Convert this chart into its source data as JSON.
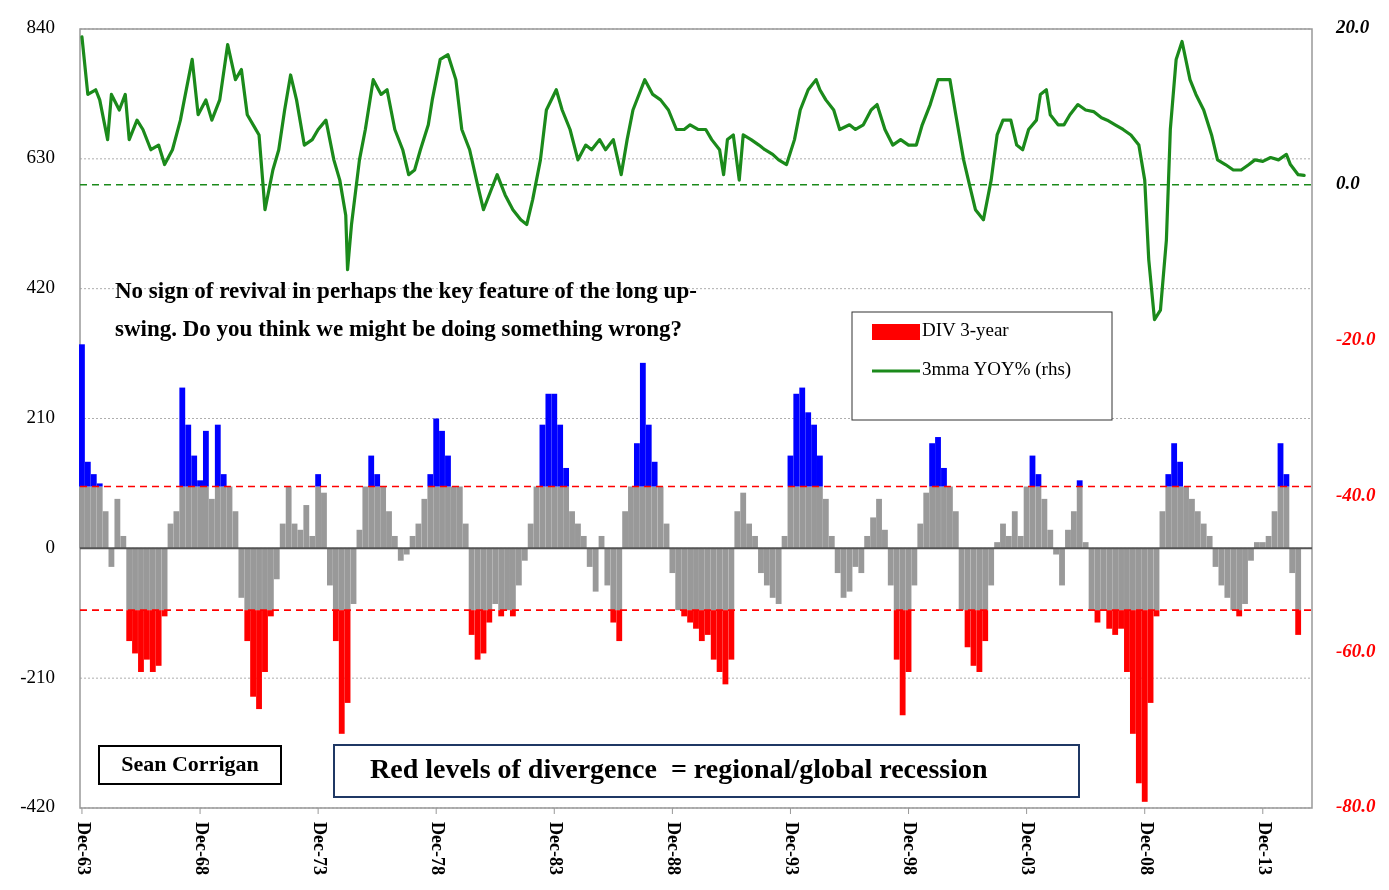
{
  "chart_data": {
    "type": "bar",
    "stacked": true,
    "x": [
      "1963-12",
      "1964-03",
      "1964-06",
      "1964-09",
      "1964-12",
      "1965-03",
      "1965-06",
      "1965-09",
      "1965-12",
      "1966-03",
      "1966-06",
      "1966-09",
      "1966-12",
      "1967-03",
      "1967-06",
      "1967-09",
      "1967-12",
      "1968-03",
      "1968-06",
      "1968-09",
      "1968-12",
      "1969-03",
      "1969-06",
      "1969-09",
      "1969-12",
      "1970-03",
      "1970-06",
      "1970-09",
      "1970-12",
      "1971-03",
      "1971-06",
      "1971-09",
      "1971-12",
      "1972-03",
      "1972-06",
      "1972-09",
      "1972-12",
      "1973-03",
      "1973-06",
      "1973-09",
      "1973-12",
      "1974-03",
      "1974-06",
      "1974-09",
      "1974-12",
      "1975-03",
      "1975-06",
      "1975-09",
      "1975-12",
      "1976-03",
      "1976-06",
      "1976-09",
      "1976-12",
      "1977-03",
      "1977-06",
      "1977-09",
      "1977-12",
      "1978-03",
      "1978-06",
      "1978-09",
      "1978-12",
      "1979-03",
      "1979-06",
      "1979-09",
      "1979-12",
      "1980-03",
      "1980-06",
      "1980-09",
      "1980-12",
      "1981-03",
      "1981-06",
      "1981-09",
      "1981-12",
      "1982-03",
      "1982-06",
      "1982-09",
      "1982-12",
      "1983-03",
      "1983-06",
      "1983-09",
      "1983-12",
      "1984-03",
      "1984-06",
      "1984-09",
      "1984-12",
      "1985-03",
      "1985-06",
      "1985-09",
      "1985-12",
      "1986-03",
      "1986-06",
      "1986-09",
      "1986-12",
      "1987-03",
      "1987-06",
      "1987-09",
      "1987-12",
      "1988-03",
      "1988-06",
      "1988-09",
      "1988-12",
      "1989-03",
      "1989-06",
      "1989-09",
      "1989-12",
      "1990-03",
      "1990-06",
      "1990-09",
      "1990-12",
      "1991-03",
      "1991-06",
      "1991-09",
      "1991-12",
      "1992-03",
      "1992-06",
      "1992-09",
      "1992-12",
      "1993-03",
      "1993-06",
      "1993-09",
      "1993-12",
      "1994-03",
      "1994-06",
      "1994-09",
      "1994-12",
      "1995-03",
      "1995-06",
      "1995-09",
      "1995-12",
      "1996-03",
      "1996-06",
      "1996-09",
      "1996-12",
      "1997-03",
      "1997-06",
      "1997-09",
      "1997-12",
      "1998-03",
      "1998-06",
      "1998-09",
      "1998-12",
      "1999-03",
      "1999-06",
      "1999-09",
      "1999-12",
      "2000-03",
      "2000-06",
      "2000-09",
      "2000-12",
      "2001-03",
      "2001-06",
      "2001-09",
      "2001-12",
      "2002-03",
      "2002-06",
      "2002-09",
      "2002-12",
      "2003-03",
      "2003-06",
      "2003-09",
      "2003-12",
      "2004-03",
      "2004-06",
      "2004-09",
      "2004-12",
      "2005-03",
      "2005-06",
      "2005-09",
      "2005-12",
      "2006-03",
      "2006-06",
      "2006-09",
      "2006-12",
      "2007-03",
      "2007-06",
      "2007-09",
      "2007-12",
      "2008-03",
      "2008-06",
      "2008-09",
      "2008-12",
      "2009-03",
      "2009-06",
      "2009-09",
      "2009-12",
      "2010-03",
      "2010-06",
      "2010-09",
      "2010-12",
      "2011-03",
      "2011-06",
      "2011-09",
      "2011-12",
      "2012-03",
      "2012-06",
      "2012-09",
      "2012-12",
      "2013-03",
      "2013-06",
      "2013-09",
      "2013-12",
      "2014-03",
      "2014-06",
      "2014-09",
      "2014-12",
      "2015-03",
      "2015-06"
    ],
    "series": [
      {
        "color": "#999999",
        "values": [
          100,
          100,
          100,
          100,
          60,
          -30,
          80,
          20,
          -100,
          -100,
          -100,
          -100,
          -100,
          -100,
          -100,
          40,
          60,
          100,
          100,
          100,
          100,
          100,
          80,
          100,
          100,
          100,
          60,
          -80,
          -100,
          -100,
          -100,
          -100,
          -100,
          -50,
          40,
          100,
          40,
          30,
          70,
          20,
          100,
          90,
          -60,
          -100,
          -100,
          -100,
          -90,
          30,
          100,
          100,
          100,
          100,
          60,
          20,
          -20,
          -10,
          20,
          40,
          80,
          100,
          100,
          100,
          100,
          100,
          100,
          40,
          -100,
          -100,
          -100,
          -100,
          -90,
          -100,
          -100,
          -100,
          -60,
          -20,
          40,
          100,
          100,
          100,
          100,
          100,
          100,
          60,
          40,
          20,
          -30,
          -70,
          20,
          -60,
          -100,
          -100,
          60,
          100,
          100,
          100,
          100,
          100,
          100,
          40,
          -40,
          -100,
          -100,
          -100,
          -100,
          -100,
          -100,
          -100,
          -100,
          -100,
          -100,
          60,
          90,
          40,
          20,
          -40,
          -60,
          -80,
          -90,
          20,
          100,
          100,
          100,
          100,
          100,
          100,
          80,
          20,
          -40,
          -80,
          -70,
          -30,
          -40,
          20,
          50,
          80,
          30,
          -60,
          -100,
          -100,
          -100,
          -60,
          40,
          90,
          100,
          100,
          100,
          100,
          60,
          -100,
          -100,
          -100,
          -100,
          -100,
          -60,
          10,
          40,
          20,
          60,
          20,
          100,
          100,
          100,
          80,
          30,
          -10,
          -60,
          30,
          60,
          100,
          10,
          -100,
          -100,
          -100,
          -100,
          -100,
          -100,
          -100,
          -100,
          -100,
          -100,
          -100,
          -100,
          60,
          100,
          100,
          100,
          100,
          80,
          60,
          40,
          20,
          -30,
          -60,
          -80,
          -100,
          -100,
          -90,
          -20,
          10,
          10,
          20,
          60,
          100,
          100,
          -40,
          -100
        ]
      },
      {
        "color": "#0000ff",
        "values": [
          230,
          40,
          20,
          5,
          null,
          null,
          null,
          null,
          null,
          null,
          null,
          null,
          null,
          null,
          null,
          null,
          null,
          160,
          100,
          50,
          10,
          90,
          null,
          100,
          20,
          null,
          null,
          null,
          null,
          null,
          null,
          null,
          null,
          null,
          null,
          null,
          null,
          null,
          null,
          null,
          20,
          null,
          null,
          null,
          null,
          null,
          null,
          null,
          null,
          50,
          20,
          null,
          null,
          null,
          null,
          null,
          null,
          null,
          null,
          20,
          110,
          90,
          50,
          null,
          null,
          null,
          null,
          null,
          null,
          null,
          null,
          null,
          null,
          null,
          null,
          null,
          null,
          null,
          100,
          150,
          150,
          100,
          30,
          null,
          null,
          null,
          null,
          null,
          null,
          null,
          null,
          null,
          null,
          null,
          70,
          200,
          100,
          40,
          null,
          null,
          null,
          null,
          null,
          null,
          null,
          null,
          null,
          null,
          null,
          null,
          null,
          null,
          null,
          null,
          null,
          null,
          null,
          null,
          null,
          null,
          50,
          150,
          160,
          120,
          100,
          50,
          null,
          null,
          null,
          null,
          null,
          null,
          null,
          null,
          null,
          null,
          null,
          null,
          null,
          null,
          null,
          null,
          null,
          null,
          70,
          80,
          30,
          null,
          null,
          null,
          null,
          null,
          null,
          null,
          null,
          null,
          null,
          null,
          null,
          null,
          null,
          50,
          20,
          null,
          null,
          null,
          null,
          null,
          null,
          10,
          null,
          null,
          null,
          null,
          null,
          null,
          null,
          null,
          null,
          null,
          null,
          null,
          null,
          null,
          20,
          70,
          40,
          null,
          null,
          null,
          null,
          null,
          null,
          null,
          null,
          null,
          null,
          null,
          null,
          null,
          null,
          null,
          null,
          70,
          20,
          null,
          null
        ]
      },
      {
        "name": "DIV 3-year",
        "color": "#ff0000",
        "values": [
          null,
          null,
          null,
          null,
          null,
          null,
          null,
          null,
          -50,
          -70,
          -100,
          -80,
          -100,
          -90,
          -10,
          null,
          null,
          null,
          null,
          null,
          null,
          null,
          null,
          null,
          null,
          null,
          null,
          null,
          -50,
          -140,
          -160,
          -100,
          -10,
          null,
          null,
          null,
          null,
          null,
          null,
          null,
          null,
          null,
          null,
          -50,
          -200,
          -150,
          null,
          null,
          null,
          null,
          null,
          null,
          null,
          null,
          null,
          null,
          null,
          null,
          null,
          null,
          null,
          null,
          null,
          null,
          null,
          null,
          -40,
          -80,
          -70,
          -20,
          null,
          -10,
          null,
          -10,
          null,
          null,
          null,
          null,
          null,
          null,
          null,
          null,
          null,
          null,
          null,
          null,
          null,
          null,
          null,
          null,
          -20,
          -50,
          null,
          null,
          null,
          null,
          null,
          null,
          null,
          null,
          null,
          null,
          -10,
          -20,
          -30,
          -50,
          -40,
          -80,
          -100,
          -120,
          -80,
          null,
          null,
          null,
          null,
          null,
          null,
          null,
          null,
          null,
          null,
          null,
          null,
          null,
          null,
          null,
          null,
          null,
          null,
          null,
          null,
          null,
          null,
          null,
          null,
          null,
          null,
          null,
          -80,
          -170,
          -100,
          null,
          null,
          null,
          null,
          null,
          null,
          null,
          null,
          null,
          -60,
          -90,
          -100,
          -50,
          null,
          null,
          null,
          null,
          null,
          null,
          null,
          null,
          null,
          null,
          null,
          null,
          null,
          null,
          null,
          null,
          null,
          null,
          -20,
          null,
          -30,
          -40,
          -30,
          -100,
          -200,
          -280,
          -310,
          -150,
          -10,
          null,
          null,
          null,
          null,
          null,
          null,
          null,
          null,
          null,
          null,
          null,
          null,
          null,
          -10,
          null,
          null,
          null,
          null,
          null,
          null,
          null,
          null,
          null,
          -40
        ]
      },
      {
        "type": "line",
        "axis": "y2",
        "name": "3mma YOY% (rhs)",
        "color": "#1b8a1b",
        "x": [
          "1963-12",
          "1964-03",
          "1964-07",
          "1964-09",
          "1965-01",
          "1965-03",
          "1965-07",
          "1965-10",
          "1965-12",
          "1966-04",
          "1966-07",
          "1966-11",
          "1967-03",
          "1967-06",
          "1967-10",
          "1968-02",
          "1968-04",
          "1968-08",
          "1968-11",
          "1969-03",
          "1969-06",
          "1969-10",
          "1970-02",
          "1970-06",
          "1970-09",
          "1970-12",
          "1971-06",
          "1971-09",
          "1972-01",
          "1972-04",
          "1972-07",
          "1972-10",
          "1973-01",
          "1973-05",
          "1973-09",
          "1973-12",
          "1974-04",
          "1974-08",
          "1974-11",
          "1975-02",
          "1975-03",
          "1975-05",
          "1975-09",
          "1975-12",
          "1976-04",
          "1976-08",
          "1976-11",
          "1977-03",
          "1977-07",
          "1977-10",
          "1978-01",
          "1978-04",
          "1978-08",
          "1978-10",
          "1979-02",
          "1979-06",
          "1979-10",
          "1980-01",
          "1980-05",
          "1980-09",
          "1980-12",
          "1981-04",
          "1981-07",
          "1981-11",
          "1982-03",
          "1982-07",
          "1982-10",
          "1983-01",
          "1983-05",
          "1983-08",
          "1984-01",
          "1984-04",
          "1984-08",
          "1984-12",
          "1985-04",
          "1985-07",
          "1985-11",
          "1986-02",
          "1986-06",
          "1986-10",
          "1987-01",
          "1987-04",
          "1987-08",
          "1987-10",
          "1988-02",
          "1988-06",
          "1988-10",
          "1989-02",
          "1989-06",
          "1989-09",
          "1990-01",
          "1990-05",
          "1990-08",
          "1990-12",
          "1991-02",
          "1991-04",
          "1991-07",
          "1991-10",
          "1991-12",
          "1992-04",
          "1992-08",
          "1992-11",
          "1993-03",
          "1993-06",
          "1993-10",
          "1994-02",
          "1994-05",
          "1994-09",
          "1995-01",
          "1995-03",
          "1995-06",
          "1995-10",
          "1996-01",
          "1996-06",
          "1996-09",
          "1997-01",
          "1997-05",
          "1997-08",
          "1997-12",
          "1998-04",
          "1998-08",
          "1998-12",
          "1999-04",
          "1999-07",
          "1999-11",
          "2000-03",
          "2000-07",
          "2000-09",
          "2000-12",
          "2001-04",
          "2001-07",
          "2001-10",
          "2002-02",
          "2002-06",
          "2002-09",
          "2002-12",
          "2003-04",
          "2003-07",
          "2003-10",
          "2004-01",
          "2004-05",
          "2004-07",
          "2004-10",
          "2004-12",
          "2005-04",
          "2005-07",
          "2005-10",
          "2006-02",
          "2006-06",
          "2006-10",
          "2007-02",
          "2007-05",
          "2007-09",
          "2008-01",
          "2008-05",
          "2008-09",
          "2008-12",
          "2009-02",
          "2009-05",
          "2009-08",
          "2009-11",
          "2010-01",
          "2010-04",
          "2010-07",
          "2010-11",
          "2011-02",
          "2011-06",
          "2011-10",
          "2012-01",
          "2012-05",
          "2012-09",
          "2013-01",
          "2013-05",
          "2013-08",
          "2013-12",
          "2014-04",
          "2014-08",
          "2014-12",
          "2015-02",
          "2015-06",
          "2015-09"
        ],
        "values": [
          19.0,
          11.6,
          12.2,
          10.9,
          5.8,
          11.6,
          9.6,
          11.6,
          5.8,
          8.3,
          7.1,
          4.5,
          5.1,
          2.6,
          4.5,
          8.3,
          10.9,
          16.1,
          9.0,
          10.9,
          8.3,
          10.9,
          18.0,
          13.5,
          14.8,
          9.0,
          6.4,
          -3.2,
          1.9,
          4.5,
          9.6,
          14.1,
          10.9,
          5.1,
          5.8,
          7.1,
          8.3,
          3.2,
          0.6,
          -3.9,
          -10.9,
          -5.1,
          3.2,
          7.1,
          13.5,
          11.6,
          12.2,
          7.1,
          4.5,
          1.3,
          1.9,
          4.5,
          7.7,
          10.9,
          16.1,
          16.7,
          13.5,
          7.1,
          4.5,
          0,
          -3.2,
          -0.6,
          1.3,
          -1.3,
          -3.2,
          -4.5,
          -5.1,
          -1.9,
          3.2,
          9.6,
          12.2,
          9.6,
          7.1,
          3.2,
          5.1,
          4.5,
          5.8,
          4.5,
          5.8,
          1.3,
          5.8,
          9.6,
          12.2,
          13.5,
          11.6,
          10.9,
          9.6,
          7.1,
          7.1,
          7.7,
          7.1,
          7.1,
          5.8,
          4.5,
          1.3,
          5.8,
          6.4,
          0.6,
          6.4,
          5.8,
          5.1,
          4.5,
          3.9,
          3.2,
          2.6,
          5.8,
          9.6,
          12.2,
          13.5,
          12.2,
          10.9,
          9.6,
          7.1,
          7.7,
          7.1,
          7.7,
          9.6,
          10.3,
          7.1,
          5.1,
          5.8,
          5.1,
          5.1,
          7.7,
          10.3,
          13.5,
          13.5,
          13.5,
          9.0,
          3.2,
          0,
          -3.2,
          -4.5,
          0.6,
          6.4,
          8.3,
          8.3,
          5.1,
          4.5,
          7.1,
          8.3,
          11.6,
          12.2,
          9.0,
          7.7,
          7.7,
          9.0,
          10.3,
          9.6,
          9.4,
          8.6,
          8.3,
          7.7,
          7.1,
          6.4,
          5.1,
          0.6,
          -9.6,
          -17.3,
          -16.1,
          -7.1,
          7.1,
          16.1,
          18.4,
          13.5,
          11.6,
          9.6,
          6.4,
          3.2,
          2.6,
          1.9,
          1.9,
          2.6,
          3.2,
          3.0,
          3.5,
          3.2,
          3.9,
          2.6,
          1.3,
          1.2
        ]
      }
    ],
    "xlim": [
      "1963-11",
      "2016-01"
    ],
    "xticks": [
      {
        "value": "1963-12",
        "label": "Dec-63"
      },
      {
        "value": "1968-12",
        "label": "Dec-68"
      },
      {
        "value": "1973-12",
        "label": "Dec-73"
      },
      {
        "value": "1978-12",
        "label": "Dec-78"
      },
      {
        "value": "1983-12",
        "label": "Dec-83"
      },
      {
        "value": "1988-12",
        "label": "Dec-88"
      },
      {
        "value": "1993-12",
        "label": "Dec-93"
      },
      {
        "value": "1998-12",
        "label": "Dec-98"
      },
      {
        "value": "2003-12",
        "label": "Dec-03"
      },
      {
        "value": "2008-12",
        "label": "Dec-08"
      },
      {
        "value": "2013-12",
        "label": "Dec-13"
      }
    ],
    "ylim": [
      -420,
      840
    ],
    "yticks": [
      -420,
      -210,
      0,
      210,
      420,
      630,
      840
    ],
    "y2lim": [
      -80,
      20
    ],
    "y2ticks": [
      {
        "value": 20,
        "label": "20.0"
      },
      {
        "value": 0,
        "label": "0.0"
      },
      {
        "value": -20,
        "label": "-20.0"
      },
      {
        "value": -40,
        "label": "-40.0"
      },
      {
        "value": -60,
        "label": "-60.0"
      },
      {
        "value": -80,
        "label": "-80.0"
      }
    ],
    "grid": "y",
    "legend": "top right",
    "marker": "none",
    "line_style": "solid",
    "ref_lines": [
      {
        "axis": "y",
        "value": 100,
        "color": "#ff0000",
        "line_style": "dashed"
      },
      {
        "axis": "y",
        "value": -100,
        "color": "#ff0000",
        "line_style": "dashed"
      },
      {
        "axis": "y2",
        "value": 0,
        "color": "#1b8a1b",
        "line_style": "dashed"
      }
    ],
    "annotations": [
      "No sign of revival in perhaps the key feature of the long up-swing. Do you think we might be doing something wrong?",
      "Sean Corrigan",
      "Red levels of divergence  = regional/global recession"
    ]
  }
}
